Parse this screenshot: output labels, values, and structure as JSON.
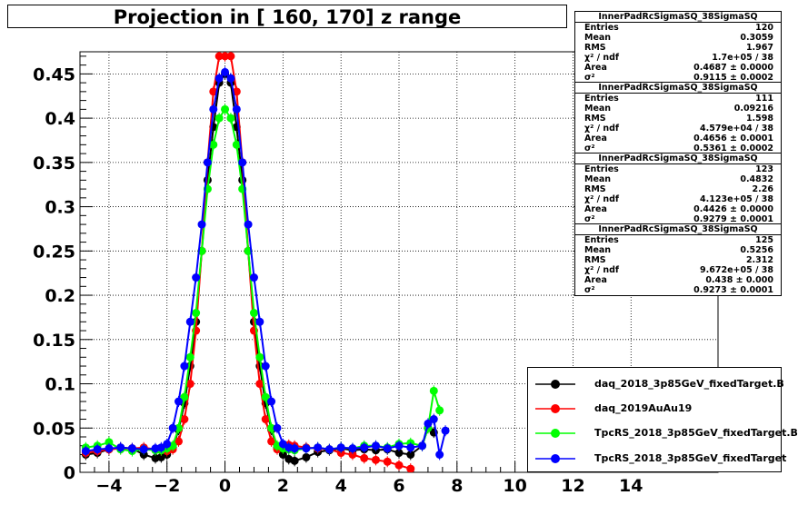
{
  "chart_data": {
    "type": "scatter",
    "title": "Projection in [ 160, 170] z range",
    "xlabel": "",
    "ylabel": "",
    "xlim": [
      -5,
      17
    ],
    "ylim": [
      0,
      0.475
    ],
    "x_major_ticks": [
      "−4",
      "−2",
      "0",
      "2",
      "4",
      "6",
      "8",
      "10",
      "12",
      "14"
    ],
    "y_major_ticks": [
      "0",
      "0.05",
      "0.1",
      "0.15",
      "0.2",
      "0.25",
      "0.3",
      "0.35",
      "0.4",
      "0.45"
    ],
    "grid": true,
    "legend_position": "bottom-right",
    "series": [
      {
        "name": "daq_2018_3p85GeV_fixedTarget.B",
        "color": "#000000",
        "x": [
          -4.8,
          -4.4,
          -4.0,
          -3.6,
          -3.2,
          -2.8,
          -2.4,
          -2.2,
          -2.0,
          -1.8,
          -1.6,
          -1.4,
          -1.2,
          -1.0,
          -0.8,
          -0.6,
          -0.4,
          -0.2,
          0.0,
          0.2,
          0.4,
          0.6,
          0.8,
          1.0,
          1.2,
          1.4,
          1.6,
          1.8,
          2.0,
          2.2,
          2.4,
          2.8,
          3.2,
          3.6,
          4.0,
          4.4,
          4.8,
          5.2,
          5.6,
          6.0,
          6.4,
          6.8,
          7.0,
          7.2
        ],
        "y": [
          0.02,
          0.022,
          0.026,
          0.028,
          0.027,
          0.02,
          0.016,
          0.017,
          0.02,
          0.028,
          0.048,
          0.078,
          0.12,
          0.17,
          0.25,
          0.33,
          0.39,
          0.44,
          0.45,
          0.44,
          0.39,
          0.33,
          0.25,
          0.17,
          0.12,
          0.078,
          0.048,
          0.028,
          0.02,
          0.015,
          0.013,
          0.017,
          0.023,
          0.025,
          0.027,
          0.025,
          0.026,
          0.025,
          0.026,
          0.022,
          0.02,
          0.03,
          0.05,
          0.045
        ]
      },
      {
        "name": "daq_2019AuAu19",
        "color": "#ff0000",
        "x": [
          -4.8,
          -4.4,
          -4.0,
          -3.6,
          -3.2,
          -2.8,
          -2.4,
          -2.2,
          -2.0,
          -1.8,
          -1.6,
          -1.4,
          -1.2,
          -1.0,
          -0.8,
          -0.6,
          -0.4,
          -0.2,
          0.0,
          0.2,
          0.4,
          0.6,
          0.8,
          1.0,
          1.2,
          1.4,
          1.6,
          1.8,
          2.0,
          2.2,
          2.4,
          2.8,
          3.2,
          3.6,
          4.0,
          4.4,
          4.8,
          5.2,
          5.6,
          6.0,
          6.4
        ],
        "y": [
          0.022,
          0.024,
          0.026,
          0.027,
          0.027,
          0.028,
          0.026,
          0.025,
          0.024,
          0.026,
          0.035,
          0.06,
          0.1,
          0.16,
          0.25,
          0.35,
          0.43,
          0.47,
          0.47,
          0.47,
          0.43,
          0.35,
          0.25,
          0.16,
          0.1,
          0.06,
          0.035,
          0.026,
          0.028,
          0.031,
          0.03,
          0.028,
          0.027,
          0.026,
          0.022,
          0.02,
          0.016,
          0.014,
          0.012,
          0.008,
          0.004
        ]
      },
      {
        "name": "TpcRS_2018_3p85GeV_fixedTarget.B",
        "color": "#00ff00",
        "x": [
          -4.8,
          -4.4,
          -4.0,
          -3.6,
          -3.2,
          -2.8,
          -2.4,
          -2.2,
          -2.0,
          -1.8,
          -1.6,
          -1.4,
          -1.2,
          -1.0,
          -0.8,
          -0.6,
          -0.4,
          -0.2,
          0.0,
          0.2,
          0.4,
          0.6,
          0.8,
          1.0,
          1.2,
          1.4,
          1.6,
          1.8,
          2.0,
          2.2,
          2.4,
          2.8,
          3.2,
          3.6,
          4.0,
          4.4,
          4.8,
          5.2,
          5.6,
          6.0,
          6.4,
          6.8,
          7.0,
          7.2,
          7.4
        ],
        "y": [
          0.028,
          0.03,
          0.034,
          0.026,
          0.024,
          0.026,
          0.025,
          0.025,
          0.027,
          0.03,
          0.05,
          0.085,
          0.13,
          0.18,
          0.25,
          0.32,
          0.37,
          0.4,
          0.41,
          0.4,
          0.37,
          0.32,
          0.25,
          0.18,
          0.13,
          0.085,
          0.05,
          0.03,
          0.027,
          0.026,
          0.025,
          0.027,
          0.028,
          0.026,
          0.028,
          0.027,
          0.03,
          0.03,
          0.028,
          0.032,
          0.033,
          0.03,
          0.05,
          0.092,
          0.07
        ]
      },
      {
        "name": "TpcRS_2018_3p85GeV_fixedTarget",
        "color": "#0000ff",
        "x": [
          -4.8,
          -4.4,
          -4.0,
          -3.6,
          -3.2,
          -2.8,
          -2.4,
          -2.2,
          -2.0,
          -1.8,
          -1.6,
          -1.4,
          -1.2,
          -1.0,
          -0.8,
          -0.6,
          -0.4,
          -0.2,
          0.0,
          0.2,
          0.4,
          0.6,
          0.8,
          1.0,
          1.2,
          1.4,
          1.6,
          1.8,
          2.0,
          2.2,
          2.4,
          2.8,
          3.2,
          3.6,
          4.0,
          4.4,
          4.8,
          5.2,
          5.6,
          6.0,
          6.4,
          6.8,
          7.0,
          7.2,
          7.4,
          7.6
        ],
        "y": [
          0.024,
          0.026,
          0.027,
          0.028,
          0.027,
          0.026,
          0.027,
          0.028,
          0.032,
          0.05,
          0.08,
          0.12,
          0.17,
          0.22,
          0.28,
          0.35,
          0.41,
          0.445,
          0.452,
          0.445,
          0.41,
          0.35,
          0.28,
          0.22,
          0.17,
          0.12,
          0.08,
          0.05,
          0.032,
          0.028,
          0.027,
          0.027,
          0.028,
          0.026,
          0.028,
          0.027,
          0.028,
          0.03,
          0.027,
          0.03,
          0.028,
          0.03,
          0.055,
          0.06,
          0.02,
          0.047
        ]
      }
    ]
  },
  "stats": [
    {
      "title": "InnerPadRcSigmaSQ_38SigmaSQ",
      "rows": [
        {
          "label": "Entries",
          "value": "120"
        },
        {
          "label": "Mean",
          "value": "0.3059"
        },
        {
          "label": "RMS",
          "value": "1.967"
        },
        {
          "label": "χ² / ndf",
          "value": "1.7e+05 / 38"
        },
        {
          "label": "Area",
          "value": "0.4687 ± 0.0000"
        },
        {
          "label": "σ²",
          "value": "0.9115 ± 0.0002"
        }
      ]
    },
    {
      "title": "InnerPadRcSigmaSQ_38SigmaSQ",
      "rows": [
        {
          "label": "Entries",
          "value": "111"
        },
        {
          "label": "Mean",
          "value": "0.09216"
        },
        {
          "label": "RMS",
          "value": "1.598"
        },
        {
          "label": "χ² / ndf",
          "value": "4.579e+04 / 38"
        },
        {
          "label": "Area",
          "value": "0.4656 ± 0.0001"
        },
        {
          "label": "σ²",
          "value": "0.5361 ± 0.0002"
        }
      ]
    },
    {
      "title": "InnerPadRcSigmaSQ_38SigmaSQ",
      "rows": [
        {
          "label": "Entries",
          "value": "123"
        },
        {
          "label": "Mean",
          "value": "0.4832"
        },
        {
          "label": "RMS",
          "value": "2.26"
        },
        {
          "label": "χ² / ndf",
          "value": "4.123e+05 / 38"
        },
        {
          "label": "Area",
          "value": "0.4426 ± 0.0000"
        },
        {
          "label": "σ²",
          "value": "0.9279 ± 0.0001"
        }
      ]
    },
    {
      "title": "InnerPadRcSigmaSQ_38SigmaSQ",
      "rows": [
        {
          "label": "Entries",
          "value": "125"
        },
        {
          "label": "Mean",
          "value": "0.5256"
        },
        {
          "label": "RMS",
          "value": "2.312"
        },
        {
          "label": "χ² / ndf",
          "value": "9.672e+05 / 38"
        },
        {
          "label": "Area",
          "value": "0.438 ± 0.000"
        },
        {
          "label": "σ²",
          "value": "0.9273 ± 0.0001"
        }
      ]
    }
  ]
}
